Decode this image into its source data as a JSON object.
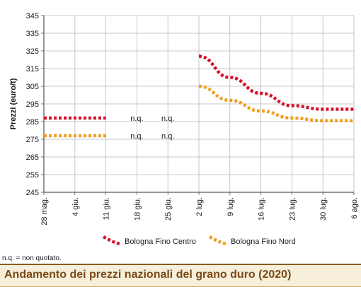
{
  "chart_data": {
    "type": "line",
    "ylabel": "Prezzi (euro/t)",
    "ylim": [
      245,
      345
    ],
    "yticks": [
      245,
      255,
      265,
      275,
      285,
      295,
      305,
      315,
      325,
      335,
      345
    ],
    "categories": [
      "28 mag.",
      "4 giu.",
      "11 giu.",
      "18 giu.",
      "25 giu.",
      "2 lug.",
      "9 lug.",
      "16 lug.",
      "23 lug.",
      "30 lug.",
      "6 ago."
    ],
    "grid": true,
    "legend_position": "bottom",
    "series": [
      {
        "name": "Bologna Fino Centro",
        "color": "#d7102a",
        "values": [
          287,
          287,
          287,
          null,
          null,
          322,
          310,
          301,
          294,
          292,
          292
        ]
      },
      {
        "name": "Bologna Fino Nord",
        "color": "#f0a020",
        "values": [
          277,
          277,
          277,
          null,
          null,
          305,
          297,
          291,
          287,
          285.5,
          285.5
        ]
      }
    ],
    "annotations": [
      {
        "text": "n.q.",
        "category": "18 giu.",
        "y": 287
      },
      {
        "text": "n.q.",
        "category": "25 giu.",
        "y": 287
      },
      {
        "text": "n.q.",
        "category": "18 giu.",
        "y": 277
      },
      {
        "text": "n.q.",
        "category": "25 giu.",
        "y": 277
      }
    ]
  },
  "note": "n.q. = non quotato.",
  "title": "Andamento dei prezzi nazionali del grano duro (2020)"
}
